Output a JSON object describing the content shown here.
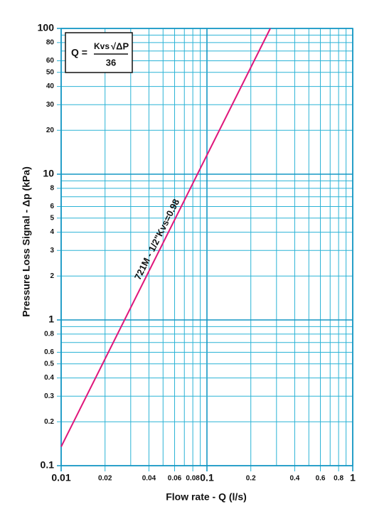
{
  "chart_data": {
    "type": "line",
    "xlabel": "Flow rate - Q (l/s)",
    "ylabel": "Pressure Loss Signal  - Δp (kPa)",
    "x_scale": "log",
    "y_scale": "log",
    "grid": true,
    "xlim": [
      0.01,
      1
    ],
    "ylim": [
      0.1,
      100
    ],
    "xticks": [
      0.01,
      0.02,
      0.04,
      0.06,
      0.08,
      0.1,
      0.2,
      0.4,
      0.6,
      0.8,
      1
    ],
    "yticks": [
      0.1,
      0.2,
      0.3,
      0.4,
      0.5,
      0.6,
      0.8,
      1,
      2,
      3,
      4,
      5,
      6,
      8,
      10,
      20,
      30,
      40,
      50,
      60,
      80,
      100
    ],
    "x_gridlines": [
      0.03,
      0.05,
      0.07,
      0.09,
      0.3,
      0.5,
      0.7,
      0.9
    ],
    "y_gridlines": [
      0.7,
      0.9,
      7,
      9,
      70,
      90
    ],
    "series": [
      {
        "name": "721M - 1/2\"",
        "label": "Kvs=0.98",
        "color": "#e0157a",
        "x": [
          0.01,
          0.272
        ],
        "values": [
          0.135,
          100
        ]
      }
    ],
    "formula": {
      "lhs": "Q =",
      "numerator_k": "Kvs",
      "numerator_root": "√ΔP",
      "denominator": "36"
    }
  }
}
